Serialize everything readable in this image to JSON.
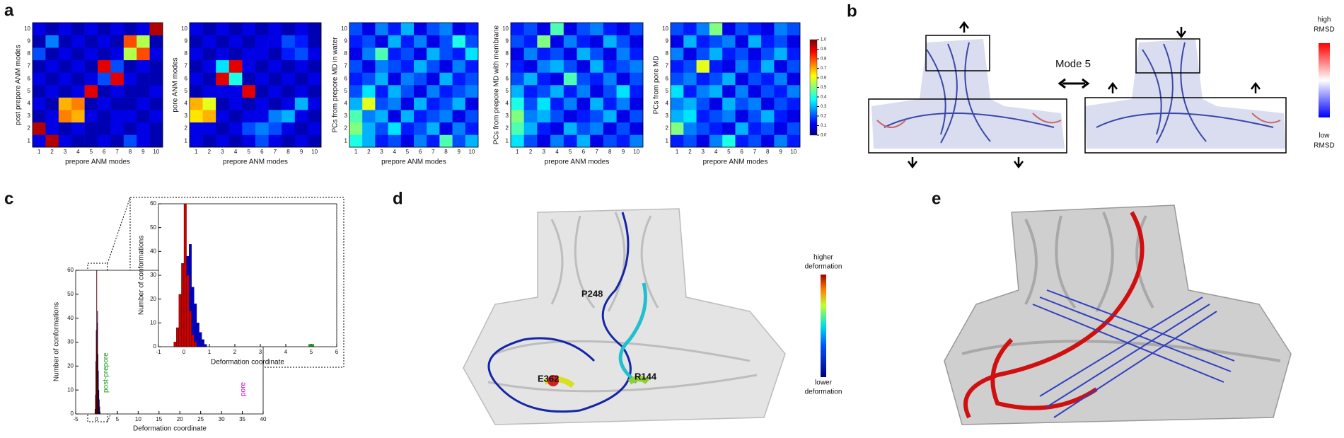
{
  "panels": {
    "a": {
      "label": "a",
      "modes": [
        1,
        2,
        3,
        4,
        5,
        6,
        7,
        8,
        9,
        10
      ],
      "colorbar_ticks": [
        {
          "value": 0,
          "label": "0.0"
        },
        {
          "value": 0.1,
          "label": "0.1"
        },
        {
          "value": 0.2,
          "label": "0.2"
        },
        {
          "value": 0.3,
          "label": "0.3"
        },
        {
          "value": 0.4,
          "label": "0.4"
        },
        {
          "value": 0.5,
          "label": "0.5"
        },
        {
          "value": 0.6,
          "label": "0.6"
        },
        {
          "value": 0.7,
          "label": "0.7"
        },
        {
          "value": 0.8,
          "label": "0.8"
        },
        {
          "value": 0.9,
          "label": "0.9"
        },
        {
          "value": 1,
          "label": "1.0"
        }
      ],
      "heatmaps": [
        {
          "ylabel": "post prepore ANM modes",
          "xlabel": "prepore ANM modes",
          "values": [
            [
              0.1,
              0.95,
              0.1,
              0.05,
              0.05,
              0.1,
              0.05,
              0.2,
              0.1,
              0.05
            ],
            [
              0.95,
              0.1,
              0.05,
              0.1,
              0.05,
              0.05,
              0.1,
              0.05,
              0.1,
              0.05
            ],
            [
              0.05,
              0.1,
              0.75,
              0.7,
              0.1,
              0.05,
              0.1,
              0.1,
              0.05,
              0.1
            ],
            [
              0.1,
              0.05,
              0.7,
              0.75,
              0.05,
              0.1,
              0.05,
              0.05,
              0.1,
              0.05
            ],
            [
              0.05,
              0.1,
              0.05,
              0.1,
              0.9,
              0.05,
              0.1,
              0.05,
              0.05,
              0.1
            ],
            [
              0.1,
              0.05,
              0.1,
              0.05,
              0.1,
              0.2,
              0.9,
              0.1,
              0.05,
              0.05
            ],
            [
              0.05,
              0.1,
              0.05,
              0.1,
              0.05,
              0.9,
              0.2,
              0.05,
              0.1,
              0.05
            ],
            [
              0.2,
              0.05,
              0.1,
              0.05,
              0.1,
              0.05,
              0.1,
              0.55,
              0.8,
              0.1
            ],
            [
              0.05,
              0.25,
              0.05,
              0.1,
              0.05,
              0.1,
              0.05,
              0.8,
              0.55,
              0.05
            ],
            [
              0.1,
              0.05,
              0.1,
              0.05,
              0.1,
              0.05,
              0.1,
              0.05,
              0.1,
              0.95
            ]
          ]
        },
        {
          "ylabel": "pore ANM modes",
          "xlabel": "prepore ANM modes",
          "values": [
            [
              0.1,
              0.05,
              0.1,
              0.05,
              0.1,
              0.2,
              0.1,
              0.05,
              0.1,
              0.05
            ],
            [
              0.1,
              0.1,
              0.05,
              0.1,
              0.2,
              0.25,
              0.2,
              0.1,
              0.05,
              0.1
            ],
            [
              0.65,
              0.7,
              0.1,
              0.05,
              0.1,
              0.1,
              0.25,
              0.3,
              0.1,
              0.05
            ],
            [
              0.7,
              0.6,
              0.05,
              0.1,
              0.05,
              0.1,
              0.05,
              0.1,
              0.3,
              0.1
            ],
            [
              0.05,
              0.1,
              0.1,
              0.1,
              0.9,
              0.05,
              0.1,
              0.05,
              0.1,
              0.05
            ],
            [
              0.1,
              0.05,
              0.9,
              0.4,
              0.05,
              0.1,
              0.05,
              0.1,
              0.05,
              0.1
            ],
            [
              0.05,
              0.1,
              0.35,
              0.9,
              0.1,
              0.05,
              0.1,
              0.05,
              0.1,
              0.05
            ],
            [
              0.1,
              0.05,
              0.1,
              0.05,
              0.1,
              0.1,
              0.05,
              0.15,
              0.2,
              0.1
            ],
            [
              0.05,
              0.1,
              0.05,
              0.1,
              0.05,
              0.1,
              0.1,
              0.2,
              0.15,
              0.05
            ],
            [
              0.1,
              0.05,
              0.1,
              0.05,
              0.1,
              0.05,
              0.1,
              0.05,
              0.1,
              0.05
            ]
          ]
        },
        {
          "ylabel": "PCs from prepore MD in water",
          "xlabel": "prepore ANM modes",
          "values": [
            [
              0.4,
              0.3,
              0.15,
              0.2,
              0.1,
              0.25,
              0.15,
              0.45,
              0.2,
              0.3
            ],
            [
              0.5,
              0.3,
              0.2,
              0.35,
              0.15,
              0.2,
              0.3,
              0.1,
              0.25,
              0.15
            ],
            [
              0.45,
              0.25,
              0.3,
              0.1,
              0.3,
              0.15,
              0.2,
              0.25,
              0.1,
              0.2
            ],
            [
              0.3,
              0.6,
              0.2,
              0.25,
              0.1,
              0.3,
              0.15,
              0.2,
              0.3,
              0.1
            ],
            [
              0.2,
              0.35,
              0.15,
              0.3,
              0.2,
              0.1,
              0.25,
              0.15,
              0.2,
              0.25
            ],
            [
              0.15,
              0.2,
              0.3,
              0.1,
              0.25,
              0.2,
              0.1,
              0.3,
              0.15,
              0.2
            ],
            [
              0.2,
              0.1,
              0.25,
              0.2,
              0.15,
              0.3,
              0.2,
              0.1,
              0.25,
              0.15
            ],
            [
              0.1,
              0.25,
              0.45,
              0.15,
              0.2,
              0.1,
              0.3,
              0.2,
              0.15,
              0.35
            ],
            [
              0.15,
              0.2,
              0.1,
              0.3,
              0.15,
              0.25,
              0.1,
              0.2,
              0.4,
              0.2
            ],
            [
              0.2,
              0.1,
              0.25,
              0.15,
              0.3,
              0.1,
              0.2,
              0.25,
              0.1,
              0.15
            ]
          ]
        },
        {
          "ylabel": "PCs from prepore MD with membrane",
          "xlabel": "prepore ANM modes",
          "values": [
            [
              0.35,
              0.2,
              0.1,
              0.25,
              0.15,
              0.3,
              0.1,
              0.2,
              0.15,
              0.25
            ],
            [
              0.45,
              0.3,
              0.15,
              0.1,
              0.3,
              0.2,
              0.25,
              0.1,
              0.2,
              0.1
            ],
            [
              0.5,
              0.25,
              0.3,
              0.2,
              0.1,
              0.15,
              0.2,
              0.3,
              0.1,
              0.2
            ],
            [
              0.4,
              0.2,
              0.35,
              0.15,
              0.25,
              0.1,
              0.3,
              0.15,
              0.25,
              0.1
            ],
            [
              0.3,
              0.15,
              0.2,
              0.3,
              0.15,
              0.25,
              0.1,
              0.2,
              0.35,
              0.15
            ],
            [
              0.2,
              0.3,
              0.15,
              0.1,
              0.45,
              0.2,
              0.15,
              0.25,
              0.1,
              0.2
            ],
            [
              0.15,
              0.1,
              0.25,
              0.3,
              0.2,
              0.1,
              0.3,
              0.15,
              0.2,
              0.25
            ],
            [
              0.1,
              0.25,
              0.15,
              0.2,
              0.1,
              0.3,
              0.2,
              0.1,
              0.25,
              0.15
            ],
            [
              0.2,
              0.15,
              0.5,
              0.1,
              0.25,
              0.15,
              0.1,
              0.3,
              0.2,
              0.1
            ],
            [
              0.15,
              0.2,
              0.1,
              0.45,
              0.1,
              0.2,
              0.25,
              0.15,
              0.1,
              0.2
            ]
          ]
        },
        {
          "ylabel": "PCs from pore MD",
          "xlabel": "prepore ANM modes",
          "values": [
            [
              0.15,
              0.2,
              0.1,
              0.25,
              0.4,
              0.15,
              0.2,
              0.1,
              0.25,
              0.15
            ],
            [
              0.5,
              0.25,
              0.2,
              0.15,
              0.1,
              0.3,
              0.15,
              0.2,
              0.1,
              0.2
            ],
            [
              0.3,
              0.35,
              0.15,
              0.2,
              0.25,
              0.1,
              0.2,
              0.3,
              0.15,
              0.1
            ],
            [
              0.25,
              0.3,
              0.2,
              0.1,
              0.3,
              0.2,
              0.25,
              0.1,
              0.2,
              0.15
            ],
            [
              0.35,
              0.15,
              0.25,
              0.3,
              0.1,
              0.25,
              0.1,
              0.2,
              0.15,
              0.25
            ],
            [
              0.2,
              0.25,
              0.15,
              0.2,
              0.3,
              0.1,
              0.2,
              0.15,
              0.25,
              0.1
            ],
            [
              0.15,
              0.2,
              0.6,
              0.15,
              0.1,
              0.25,
              0.15,
              0.3,
              0.1,
              0.2
            ],
            [
              0.25,
              0.1,
              0.2,
              0.3,
              0.15,
              0.2,
              0.1,
              0.2,
              0.3,
              0.15
            ],
            [
              0.1,
              0.3,
              0.15,
              0.2,
              0.25,
              0.1,
              0.3,
              0.15,
              0.2,
              0.1
            ],
            [
              0.2,
              0.15,
              0.25,
              0.5,
              0.1,
              0.2,
              0.15,
              0.1,
              0.25,
              0.2
            ]
          ]
        }
      ]
    },
    "b": {
      "label": "b",
      "mode": "Mode 5",
      "high": "high",
      "low": "low",
      "unit": "RMSD"
    },
    "c": {
      "label": "c",
      "ylabel": "Number of conformations",
      "xlabel": "Deformation coordinate",
      "xlim": [
        -5,
        40
      ],
      "xticks": [
        -5,
        0,
        5,
        10,
        15,
        20,
        25,
        30,
        35,
        40
      ],
      "ylim": [
        0,
        60
      ],
      "yticks": [
        0,
        10,
        20,
        30,
        40,
        50,
        60
      ],
      "inset": {
        "xlim": [
          -1,
          6
        ],
        "xticks": [
          -1,
          0,
          1,
          2,
          3,
          4,
          5,
          6
        ],
        "ylim": [
          0,
          60
        ],
        "yticks": [
          0,
          10,
          20,
          30,
          40,
          50,
          60
        ]
      },
      "bins": [
        -0.4,
        -0.3,
        -0.2,
        -0.1,
        0,
        0.1,
        0.2,
        0.3,
        0.4,
        0.5,
        0.6,
        0.7,
        0.8,
        0.9
      ],
      "series": [
        {
          "color": "#0000cc",
          "counts": [
            0,
            2,
            8,
            20,
            30,
            38,
            43,
            25,
            18,
            10,
            6,
            3,
            1
          ]
        },
        {
          "color": "#cc0000",
          "counts": [
            2,
            8,
            22,
            35,
            60,
            30,
            15,
            5,
            2,
            0,
            0,
            0,
            0
          ]
        }
      ],
      "post_prepore": {
        "text": "post-prepore",
        "color": "#119911",
        "bins": [
          4.9,
          5.1
        ],
        "counts": [
          1
        ]
      },
      "pore": {
        "text": "pore",
        "color": "#cc00cc"
      }
    },
    "d": {
      "label": "d",
      "higher": "higher",
      "lower": "lower",
      "unit": "deformation",
      "residues": [
        "P248",
        "E362",
        "R144"
      ]
    },
    "e": {
      "label": "e"
    }
  }
}
